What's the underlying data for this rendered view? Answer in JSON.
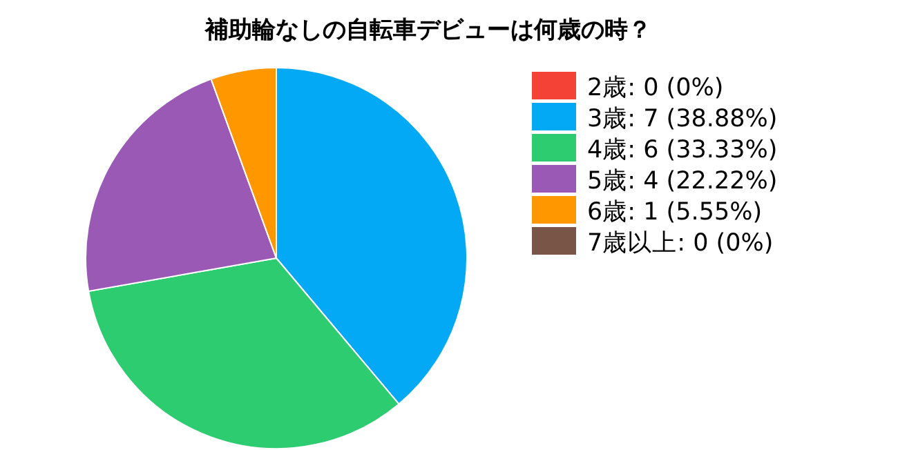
{
  "chart_data": {
    "type": "pie",
    "title": "補助輪なしの自転車デビューは何歳の時？",
    "categories": [
      "2歳: 0 (0%)",
      "3歳: 7 (38.88%)",
      "4歳: 6 (33.33%)",
      "5歳: 4 (22.22%)",
      "6歳: 1 (5.55%)",
      "7歳以上: 0 (0%)"
    ],
    "values": [
      0,
      7,
      6,
      4,
      1,
      0
    ],
    "colors": [
      "#f44336",
      "#03a9f4",
      "#2ecc71",
      "#9b59b6",
      "#ff9800",
      "#795548"
    ],
    "legend": "right"
  }
}
